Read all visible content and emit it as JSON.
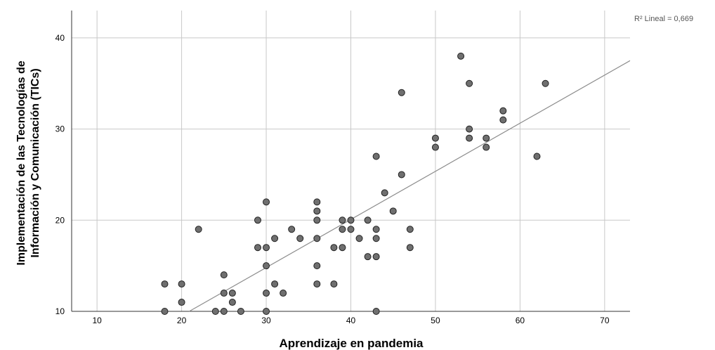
{
  "chart_data": {
    "type": "scatter",
    "title": "",
    "xlabel": "Aprendizaje en pandemia",
    "ylabel_lines": [
      "Implementación de las Tecnologías de",
      "Información y Comunicación (TICs)"
    ],
    "xlim": [
      7,
      73
    ],
    "ylim": [
      10,
      43
    ],
    "x_ticks": [
      10,
      20,
      30,
      40,
      50,
      60,
      70
    ],
    "y_ticks": [
      10,
      20,
      30,
      40
    ],
    "grid": true,
    "fit_line": {
      "label": "R² Lineal = 0,669",
      "from": [
        20.9,
        10
      ],
      "to": [
        73,
        37.5
      ]
    },
    "colors": {
      "point_fill": "#6f6f6f",
      "point_edge": "#222222",
      "fit_line": "#8c8c8c",
      "grid": "#c8c8c8"
    },
    "points": [
      [
        18,
        13
      ],
      [
        18,
        10
      ],
      [
        20,
        13
      ],
      [
        20,
        11
      ],
      [
        22,
        19
      ],
      [
        24,
        10
      ],
      [
        25,
        14
      ],
      [
        25,
        12
      ],
      [
        25,
        10
      ],
      [
        26,
        12
      ],
      [
        26,
        11
      ],
      [
        27,
        10
      ],
      [
        29,
        20
      ],
      [
        29,
        17
      ],
      [
        30,
        22
      ],
      [
        30,
        17
      ],
      [
        30,
        15
      ],
      [
        30,
        12
      ],
      [
        30,
        10
      ],
      [
        31,
        18
      ],
      [
        31,
        13
      ],
      [
        32,
        12
      ],
      [
        33,
        19
      ],
      [
        34,
        18
      ],
      [
        36,
        22
      ],
      [
        36,
        21
      ],
      [
        36,
        20
      ],
      [
        36,
        18
      ],
      [
        36,
        15
      ],
      [
        36,
        13
      ],
      [
        38,
        17
      ],
      [
        38,
        13
      ],
      [
        39,
        20
      ],
      [
        39,
        19
      ],
      [
        39,
        17
      ],
      [
        40,
        20
      ],
      [
        40,
        19
      ],
      [
        41,
        18
      ],
      [
        42,
        20
      ],
      [
        42,
        16
      ],
      [
        43,
        27
      ],
      [
        43,
        19
      ],
      [
        43,
        18
      ],
      [
        43,
        16
      ],
      [
        43,
        10
      ],
      [
        44,
        23
      ],
      [
        45,
        21
      ],
      [
        46,
        34
      ],
      [
        46,
        25
      ],
      [
        47,
        19
      ],
      [
        47,
        17
      ],
      [
        50,
        29
      ],
      [
        50,
        28
      ],
      [
        53,
        38
      ],
      [
        54,
        35
      ],
      [
        54,
        30
      ],
      [
        54,
        29
      ],
      [
        56,
        29
      ],
      [
        56,
        28
      ],
      [
        58,
        32
      ],
      [
        58,
        31
      ],
      [
        62,
        27
      ],
      [
        63,
        35
      ]
    ]
  }
}
